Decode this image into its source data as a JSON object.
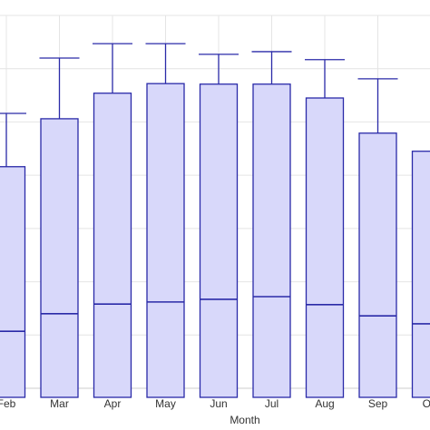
{
  "chart_data": {
    "type": "box",
    "x_label": "Month",
    "categories": [
      "Feb",
      "Mar",
      "Apr",
      "May",
      "Jun",
      "Jul",
      "Aug",
      "Sep",
      "Oct"
    ],
    "whisker_high": [
      5.16,
      6.2,
      6.47,
      6.47,
      6.27,
      6.32,
      6.17,
      5.81,
      null
    ],
    "q3": [
      4.16,
      5.06,
      5.54,
      5.72,
      5.71,
      5.71,
      5.45,
      4.79,
      4.45
    ],
    "median": [
      1.07,
      1.4,
      1.58,
      1.62,
      1.67,
      1.72,
      1.57,
      1.36,
      1.21
    ],
    "color": "#2a2aa8",
    "fill": "#d8d8fa",
    "ylim": [
      0,
      7
    ],
    "yticks": [
      1,
      2,
      3,
      4,
      5,
      6,
      7
    ],
    "grid": true
  }
}
